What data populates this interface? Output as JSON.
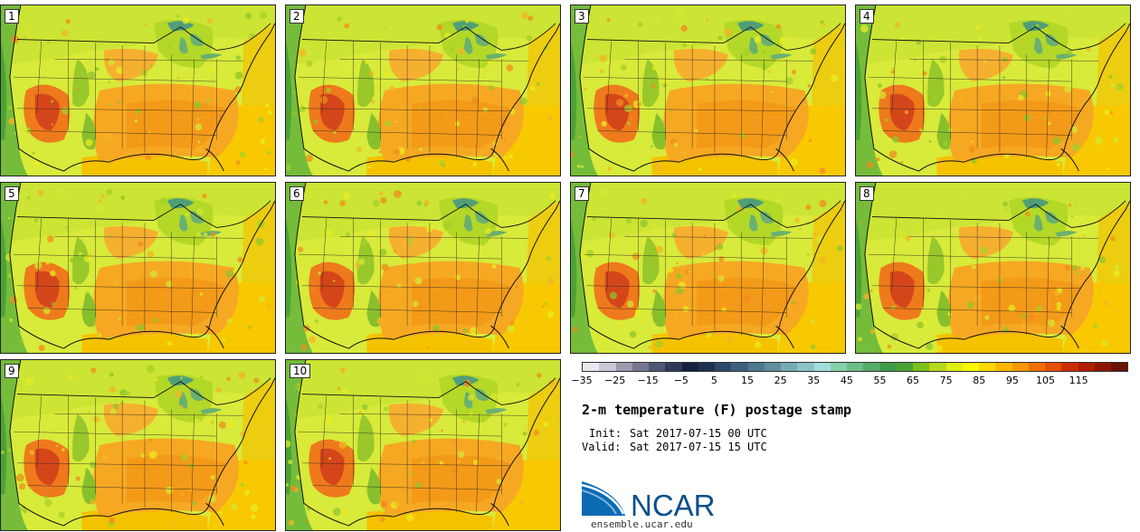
{
  "members": [
    "1",
    "2",
    "3",
    "4",
    "5",
    "6",
    "7",
    "8",
    "9",
    "10"
  ],
  "colorbar": {
    "colors": [
      "#e8e8ee",
      "#c8c8d6",
      "#9a9ab0",
      "#767690",
      "#4e5876",
      "#2e3a5a",
      "#16223e",
      "#1e3050",
      "#2e4a6a",
      "#3e607e",
      "#4e7890",
      "#60909e",
      "#76aab2",
      "#8cc4c6",
      "#a0dede",
      "#86d0a8",
      "#6cbe86",
      "#54ac66",
      "#3e9a48",
      "#4aa234",
      "#7ec01e",
      "#b6d81c",
      "#e0ee14",
      "#f8f800",
      "#fcd800",
      "#fcb600",
      "#f89600",
      "#f07000",
      "#e44e00",
      "#cc2e00",
      "#b01e00",
      "#8e1600",
      "#6a1200"
    ],
    "ticks": [
      "−35",
      "−25",
      "−15",
      "−5",
      "5",
      "15",
      "25",
      "35",
      "45",
      "55",
      "65",
      "75",
      "85",
      "95",
      "105",
      "115"
    ]
  },
  "title": "2-m temperature (F) postage stamp",
  "init_label": "Init:",
  "init_value": "Sat 2017-07-15 00 UTC",
  "valid_label": "Valid:",
  "valid_value": "Sat 2017-07-15 15 UTC",
  "logo_text": "NCAR",
  "site": "ensemble.ucar.edu"
}
